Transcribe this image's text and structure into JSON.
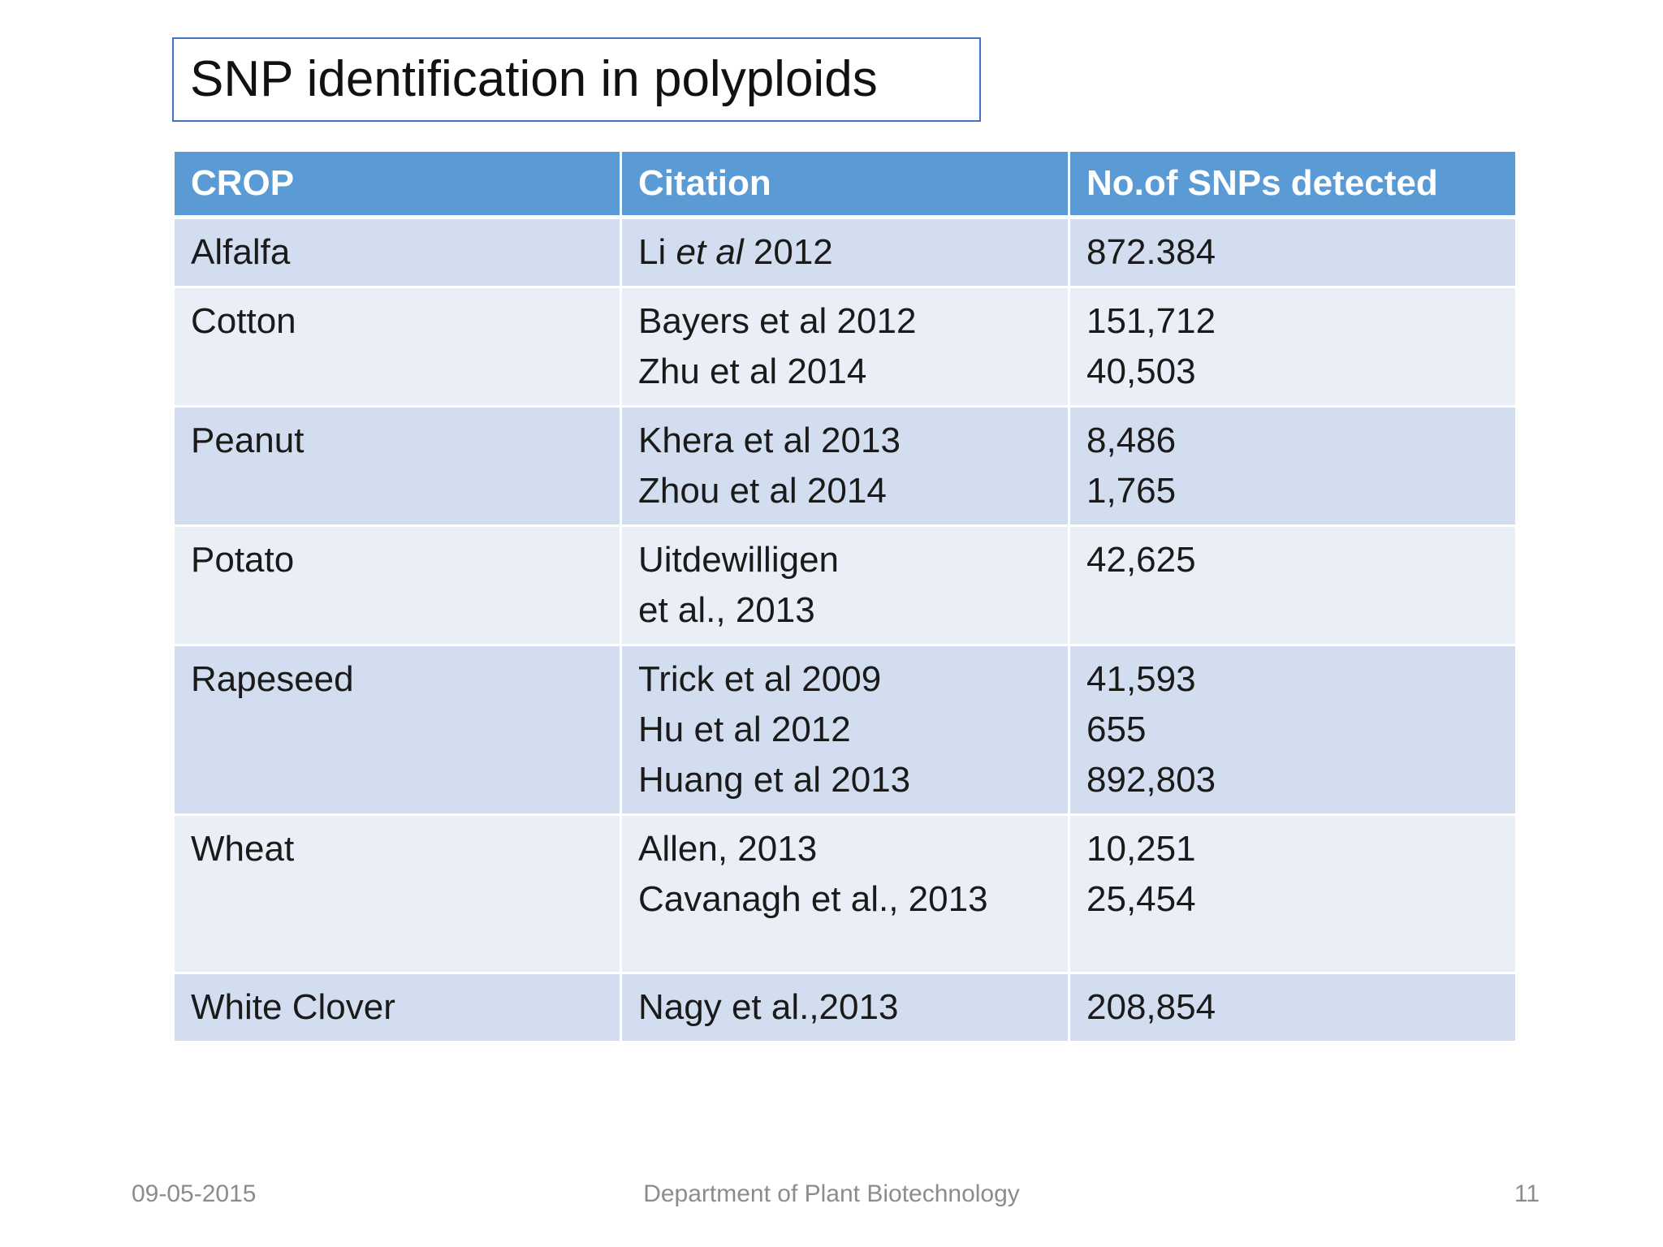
{
  "slide": {
    "title": "SNP identification in polyploids"
  },
  "table": {
    "headers": [
      "CROP",
      "Citation",
      "No.of SNPs detected"
    ],
    "rows": [
      {
        "crop": "Alfalfa",
        "citations": [
          {
            "pre": "Li ",
            "italic": "et al",
            "post": " 2012"
          }
        ],
        "snps": [
          "872.384"
        ]
      },
      {
        "crop": "Cotton",
        "citations": [
          {
            "pre": "Bayers et al 2012"
          },
          {
            "pre": "Zhu et al 2014"
          }
        ],
        "snps": [
          "151,712",
          "40,503"
        ]
      },
      {
        "crop": "Peanut",
        "citations": [
          {
            "pre": "Khera et al 2013"
          },
          {
            "pre": "Zhou et al 2014"
          }
        ],
        "snps": [
          "8,486",
          "1,765"
        ]
      },
      {
        "crop": "Potato",
        "citations": [
          {
            "pre": "Uitdewilligen"
          },
          {
            "pre": "et al., 2013"
          }
        ],
        "snps": [
          "42,625"
        ]
      },
      {
        "crop": "Rapeseed",
        "citations": [
          {
            "pre": "Trick et al 2009"
          },
          {
            "pre": "Hu et al 2012"
          },
          {
            "pre": "Huang et al 2013"
          }
        ],
        "snps": [
          "41,593",
          "655",
          "892,803"
        ]
      },
      {
        "crop": "Wheat",
        "citations": [
          {
            "pre": "Allen, 2013"
          },
          {
            "pre": "Cavanagh et al., 2013"
          }
        ],
        "snps": [
          "10,251",
          "25,454"
        ]
      },
      {
        "crop": "White Clover",
        "citations": [
          {
            "pre": "Nagy et al.,2013"
          }
        ],
        "snps": [
          "208,854"
        ]
      }
    ]
  },
  "footer": {
    "date": "09-05-2015",
    "department": "Department of Plant Biotechnology",
    "page_number": "11"
  },
  "colors": {
    "header_fill": "#5b9bd5",
    "row_dark": "#d2deef",
    "row_light": "#eaeff7",
    "title_border": "#4472c4"
  }
}
